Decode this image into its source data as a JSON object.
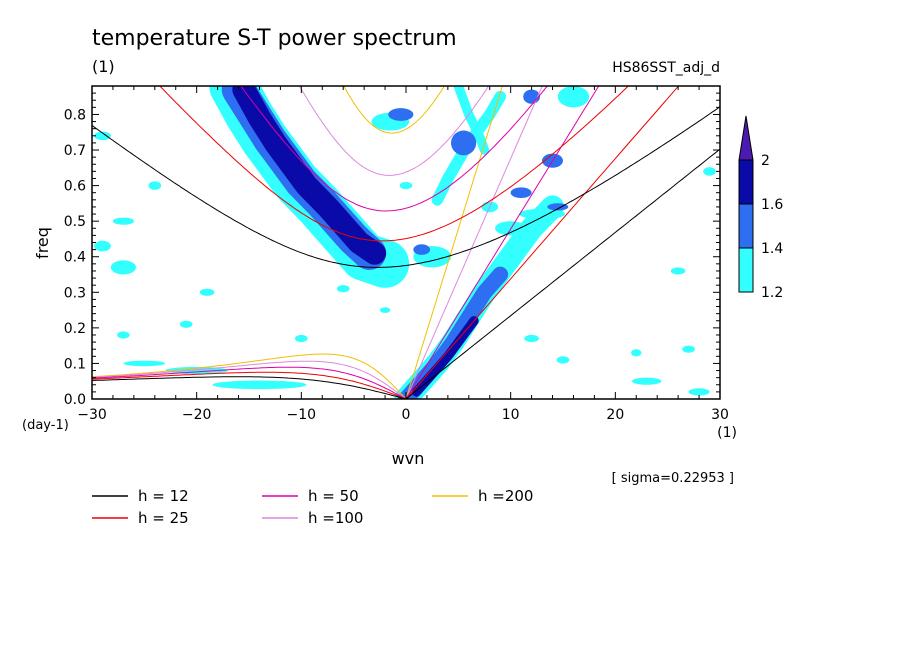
{
  "chart_data": {
    "type": "heatmap",
    "title": "temperature S-T power spectrum",
    "title_unit": "(1)",
    "dataset_label": "HS86SST_adj_d",
    "xlabel": "wvn",
    "x_unit": "(1)",
    "ylabel": "freq",
    "y_unit": "(day-1)",
    "xlim": [
      -30,
      30
    ],
    "ylim": [
      0.0,
      0.88
    ],
    "x_ticks": [
      "-30",
      "-20",
      "-10",
      "0",
      "10",
      "20",
      "30"
    ],
    "y_ticks": [
      "0.0",
      "0.1",
      "0.2",
      "0.3",
      "0.4",
      "0.5",
      "0.6",
      "0.7",
      "0.8"
    ],
    "grid": false,
    "colorbar": {
      "levels": [
        "1.2",
        "1.4",
        "1.6",
        "2"
      ],
      "colors": [
        "#33ffff",
        "#2e6ef0",
        "#0a0aa8",
        "#4c1ab0"
      ]
    },
    "sigma_note": "[ sigma=0.22953 ]",
    "legend": [
      {
        "label": "h = 12",
        "h": 12,
        "color": "#000000"
      },
      {
        "label": "h = 25",
        "h": 25,
        "color": "#ee0000"
      },
      {
        "label": "h = 50",
        "h": 50,
        "color": "#dd00aa"
      },
      {
        "label": "h =100",
        "h": 100,
        "color": "#dd88dd"
      },
      {
        "label": "h =200",
        "h": 200,
        "color": "#f0c000"
      }
    ],
    "kelvin_slopes": {
      "h12": 0.0234,
      "h25": 0.0338,
      "h50": 0.0478,
      "h100": 0.0676,
      "h200": 0.0956
    },
    "power_regions": [
      {
        "kind": "ridge",
        "level": 3,
        "points": [
          [
            -15.5,
            0.87
          ],
          [
            -14,
            0.79
          ],
          [
            -12.5,
            0.72
          ],
          [
            -11,
            0.66
          ],
          [
            -9.5,
            0.6
          ],
          [
            -7.5,
            0.54
          ],
          [
            -6,
            0.49
          ],
          [
            -4.5,
            0.44
          ],
          [
            -3,
            0.41
          ]
        ],
        "width": 2.2
      },
      {
        "kind": "ridge",
        "level": 2,
        "points": [
          [
            -16,
            0.87
          ],
          [
            -14.5,
            0.8
          ],
          [
            -13,
            0.73
          ],
          [
            -11.5,
            0.67
          ],
          [
            -10,
            0.61
          ],
          [
            -8,
            0.55
          ],
          [
            -6.5,
            0.5
          ],
          [
            -5,
            0.45
          ],
          [
            -3.5,
            0.41
          ]
        ],
        "width": 3.2
      },
      {
        "kind": "ridge",
        "level": 1,
        "points": [
          [
            -16.5,
            0.88
          ],
          [
            -15,
            0.8
          ],
          [
            -13.5,
            0.73
          ],
          [
            -12,
            0.67
          ],
          [
            -10.5,
            0.61
          ],
          [
            -8.5,
            0.55
          ],
          [
            -7,
            0.5
          ],
          [
            -5.5,
            0.45
          ],
          [
            -4,
            0.4
          ],
          [
            -2,
            0.38
          ]
        ],
        "width": 4.6
      },
      {
        "kind": "ridge",
        "level": 1,
        "points": [
          [
            0,
            0.0
          ],
          [
            1.5,
            0.05
          ],
          [
            3,
            0.1
          ],
          [
            4.5,
            0.16
          ],
          [
            6,
            0.23
          ],
          [
            7.5,
            0.3
          ],
          [
            9,
            0.36
          ],
          [
            10.5,
            0.42
          ],
          [
            12,
            0.48
          ],
          [
            14,
            0.54
          ]
        ],
        "width": 2.2
      },
      {
        "kind": "ridge",
        "level": 2,
        "points": [
          [
            0,
            0.0
          ],
          [
            1.5,
            0.05
          ],
          [
            3,
            0.1
          ],
          [
            4.5,
            0.16
          ],
          [
            6,
            0.23
          ],
          [
            7.5,
            0.3
          ],
          [
            9,
            0.35
          ]
        ],
        "width": 1.5
      },
      {
        "kind": "ridge",
        "level": 3,
        "points": [
          [
            1,
            0.02
          ],
          [
            2.5,
            0.07
          ],
          [
            4,
            0.12
          ],
          [
            5.5,
            0.18
          ],
          [
            6.5,
            0.22
          ]
        ],
        "width": 0.9
      },
      {
        "kind": "ridge",
        "level": 1,
        "points": [
          [
            3,
            0.56
          ],
          [
            4,
            0.62
          ],
          [
            5,
            0.67
          ],
          [
            6,
            0.72
          ],
          [
            7,
            0.76
          ],
          [
            8,
            0.8
          ],
          [
            9,
            0.85
          ]
        ],
        "width": 1.1
      },
      {
        "kind": "ridge",
        "level": 1,
        "points": [
          [
            5,
            0.88
          ],
          [
            6,
            0.8
          ],
          [
            7,
            0.74
          ],
          [
            7.5,
            0.7
          ]
        ],
        "width": 0.9
      },
      {
        "kind": "blob",
        "level": 3,
        "x": -3.5,
        "y": 0.42,
        "rx": 1.4,
        "ry": 0.022
      },
      {
        "kind": "blob",
        "level": 2,
        "x": 5.5,
        "y": 0.72,
        "rx": 1.2,
        "ry": 0.035
      },
      {
        "kind": "blob",
        "level": 2,
        "x": -0.5,
        "y": 0.8,
        "rx": 1.2,
        "ry": 0.018
      },
      {
        "kind": "blob",
        "level": 1,
        "x": -1.5,
        "y": 0.78,
        "rx": 1.8,
        "ry": 0.025
      },
      {
        "kind": "blob",
        "level": 2,
        "x": 1.5,
        "y": 0.42,
        "rx": 0.8,
        "ry": 0.015
      },
      {
        "kind": "blob",
        "level": 1,
        "x": 2.5,
        "y": 0.4,
        "rx": 1.8,
        "ry": 0.03
      },
      {
        "kind": "blob",
        "level": 1,
        "x": 13,
        "y": 0.52,
        "rx": 2.2,
        "ry": 0.015
      },
      {
        "kind": "blob",
        "level": 2,
        "x": 14.5,
        "y": 0.54,
        "rx": 1.0,
        "ry": 0.01
      },
      {
        "kind": "blob",
        "level": 2,
        "x": 11,
        "y": 0.58,
        "rx": 1.0,
        "ry": 0.015
      },
      {
        "kind": "blob",
        "level": 2,
        "x": 14,
        "y": 0.67,
        "rx": 1.0,
        "ry": 0.02
      },
      {
        "kind": "blob",
        "level": 1,
        "x": 16,
        "y": 0.85,
        "rx": 1.5,
        "ry": 0.03
      },
      {
        "kind": "blob",
        "level": 2,
        "x": 12,
        "y": 0.85,
        "rx": 0.8,
        "ry": 0.02
      },
      {
        "kind": "blob",
        "level": 1,
        "x": 10,
        "y": 0.48,
        "rx": 1.5,
        "ry": 0.02
      },
      {
        "kind": "blob",
        "level": 1,
        "x": -27,
        "y": 0.37,
        "rx": 1.2,
        "ry": 0.02
      },
      {
        "kind": "blob",
        "level": 1,
        "x": -29,
        "y": 0.43,
        "rx": 0.8,
        "ry": 0.015
      },
      {
        "kind": "blob",
        "level": 1,
        "x": -27,
        "y": 0.5,
        "rx": 1.0,
        "ry": 0.01
      },
      {
        "kind": "blob",
        "level": 1,
        "x": -29,
        "y": 0.74,
        "rx": 0.8,
        "ry": 0.012
      },
      {
        "kind": "blob",
        "level": 1,
        "x": -16,
        "y": 0.82,
        "rx": 1.5,
        "ry": 0.02
      },
      {
        "kind": "blob",
        "level": 1,
        "x": -20,
        "y": 0.08,
        "rx": 3.0,
        "ry": 0.01
      },
      {
        "kind": "blob",
        "level": 1,
        "x": -14,
        "y": 0.04,
        "rx": 4.5,
        "ry": 0.012
      },
      {
        "kind": "blob",
        "level": 1,
        "x": -25,
        "y": 0.1,
        "rx": 2.0,
        "ry": 0.008
      },
      {
        "kind": "blob",
        "level": 1,
        "x": -19,
        "y": 0.3,
        "rx": 0.7,
        "ry": 0.01
      },
      {
        "kind": "blob",
        "level": 1,
        "x": -27,
        "y": 0.18,
        "rx": 0.6,
        "ry": 0.01
      },
      {
        "kind": "blob",
        "level": 1,
        "x": 12,
        "y": 0.17,
        "rx": 0.7,
        "ry": 0.01
      },
      {
        "kind": "blob",
        "level": 1,
        "x": 22,
        "y": 0.13,
        "rx": 0.5,
        "ry": 0.01
      },
      {
        "kind": "blob",
        "level": 1,
        "x": 26,
        "y": 0.36,
        "rx": 0.7,
        "ry": 0.01
      },
      {
        "kind": "blob",
        "level": 1,
        "x": 29,
        "y": 0.64,
        "rx": 0.6,
        "ry": 0.012
      },
      {
        "kind": "blob",
        "level": 1,
        "x": 27,
        "y": 0.14,
        "rx": 0.6,
        "ry": 0.01
      },
      {
        "kind": "blob",
        "level": 1,
        "x": 15,
        "y": 0.11,
        "rx": 0.6,
        "ry": 0.01
      },
      {
        "kind": "blob",
        "level": 1,
        "x": 23,
        "y": 0.05,
        "rx": 1.4,
        "ry": 0.01
      },
      {
        "kind": "blob",
        "level": 1,
        "x": -6,
        "y": 0.31,
        "rx": 0.6,
        "ry": 0.01
      },
      {
        "kind": "blob",
        "level": 1,
        "x": -21,
        "y": 0.21,
        "rx": 0.6,
        "ry": 0.01
      },
      {
        "kind": "blob",
        "level": 1,
        "x": -10,
        "y": 0.17,
        "rx": 0.6,
        "ry": 0.01
      },
      {
        "kind": "blob",
        "level": 1,
        "x": -24,
        "y": 0.6,
        "rx": 0.6,
        "ry": 0.012
      },
      {
        "kind": "blob",
        "level": 1,
        "x": -11,
        "y": 0.69,
        "rx": 0.8,
        "ry": 0.012
      },
      {
        "kind": "blob",
        "level": 1,
        "x": 8,
        "y": 0.54,
        "rx": 0.8,
        "ry": 0.015
      },
      {
        "kind": "blob",
        "level": 1,
        "x": 0,
        "y": 0.6,
        "rx": 0.6,
        "ry": 0.01
      },
      {
        "kind": "blob",
        "level": 1,
        "x": 28,
        "y": 0.02,
        "rx": 1.0,
        "ry": 0.01
      },
      {
        "kind": "blob",
        "level": 1,
        "x": -2,
        "y": 0.25,
        "rx": 0.5,
        "ry": 0.008
      }
    ]
  }
}
